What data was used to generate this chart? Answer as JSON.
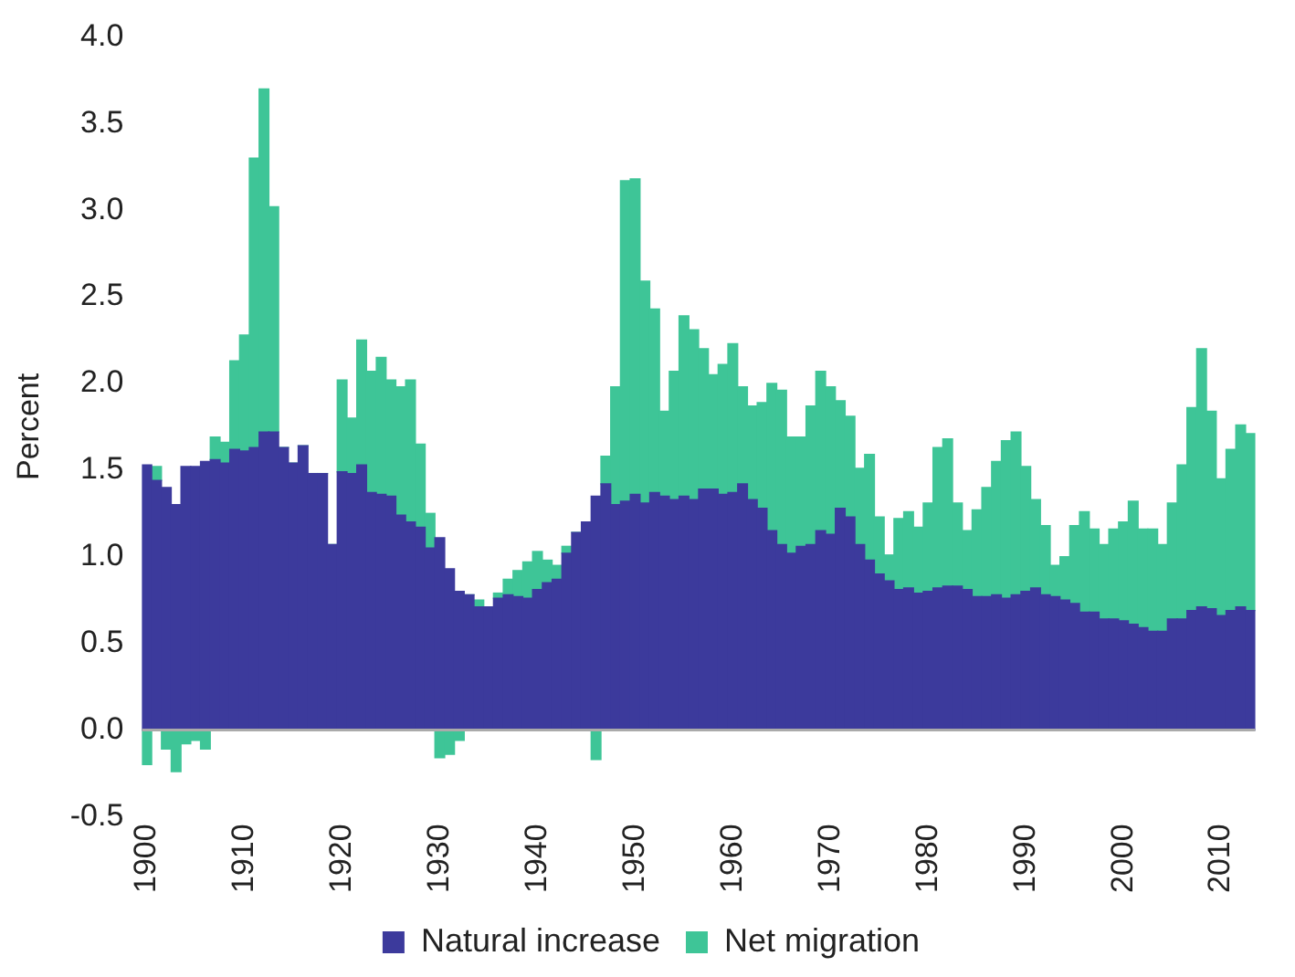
{
  "chart_data": {
    "type": "bar",
    "stacked": true,
    "ylabel": "Percent",
    "legend": "bottom",
    "categories": [
      "1900",
      null,
      null,
      null,
      null,
      null,
      null,
      null,
      null,
      null,
      "1910",
      null,
      null,
      null,
      null,
      null,
      null,
      null,
      null,
      null,
      "1920",
      null,
      null,
      null,
      null,
      null,
      null,
      null,
      null,
      null,
      "1930",
      null,
      null,
      null,
      null,
      null,
      null,
      null,
      null,
      null,
      "1940",
      null,
      null,
      null,
      null,
      null,
      null,
      null,
      null,
      null,
      "1950",
      null,
      null,
      null,
      null,
      null,
      null,
      null,
      null,
      null,
      "1960",
      null,
      null,
      null,
      null,
      null,
      null,
      null,
      null,
      null,
      "1970",
      null,
      null,
      null,
      null,
      null,
      null,
      null,
      null,
      null,
      "1980",
      null,
      null,
      null,
      null,
      null,
      null,
      null,
      null,
      null,
      "1990",
      null,
      null,
      null,
      null,
      null,
      null,
      null,
      null,
      null,
      "2000",
      null,
      null,
      null,
      null,
      null,
      null,
      null,
      null,
      null,
      "2010",
      null,
      null,
      null
    ],
    "ylim": [
      -0.5,
      4.0
    ],
    "yticks": [
      -0.5,
      {
        "value": 0,
        "label": "0.0"
      },
      0.5,
      {
        "value": 1,
        "label": "1.0"
      },
      1.5,
      {
        "value": 2,
        "label": "2.0"
      },
      2.5,
      {
        "value": 3,
        "label": "3.0"
      },
      3.5,
      {
        "value": 4,
        "label": "4.0"
      }
    ],
    "series": [
      {
        "name": "Natural increase",
        "color": "#3c3a9c",
        "values": [
          1.53,
          1.44,
          1.4,
          1.3,
          1.52,
          1.52,
          1.55,
          1.56,
          1.54,
          1.62,
          1.61,
          1.63,
          1.72,
          1.72,
          1.63,
          1.54,
          1.64,
          1.48,
          1.48,
          1.07,
          1.49,
          1.48,
          1.53,
          1.37,
          1.36,
          1.35,
          1.24,
          1.2,
          1.17,
          1.05,
          1.11,
          0.93,
          0.8,
          0.78,
          0.71,
          0.71,
          0.76,
          0.78,
          0.77,
          0.76,
          0.81,
          0.85,
          0.87,
          1.02,
          1.14,
          1.2,
          1.35,
          1.42,
          1.3,
          1.32,
          1.36,
          1.31,
          1.37,
          1.35,
          1.33,
          1.35,
          1.33,
          1.39,
          1.39,
          1.36,
          1.37,
          1.42,
          1.33,
          1.28,
          1.15,
          1.07,
          1.02,
          1.06,
          1.07,
          1.15,
          1.13,
          1.28,
          1.23,
          1.07,
          0.98,
          0.9,
          0.86,
          0.81,
          0.82,
          0.79,
          0.8,
          0.82,
          0.83,
          0.83,
          0.81,
          0.77,
          0.77,
          0.78,
          0.76,
          0.78,
          0.8,
          0.82,
          0.78,
          0.77,
          0.75,
          0.73,
          0.68,
          0.68,
          0.64,
          0.64,
          0.63,
          0.61,
          0.59,
          0.57,
          0.57,
          0.64,
          0.64,
          0.69,
          0.71,
          0.7,
          0.66,
          0.69,
          0.71,
          0.69
        ]
      },
      {
        "name": "Net migration",
        "color": "#3ec597",
        "values": [
          -0.2,
          0.08,
          -0.11,
          -0.24,
          -0.08,
          -0.06,
          -0.11,
          0.13,
          0.12,
          0.51,
          0.67,
          1.67,
          1.98,
          1.3,
          0,
          0,
          0,
          0,
          0,
          0,
          0.53,
          0.32,
          0.72,
          0.7,
          0.79,
          0.67,
          0.74,
          0.82,
          0.48,
          0.2,
          -0.16,
          -0.14,
          -0.06,
          0,
          0.04,
          0,
          0.03,
          0.09,
          0.15,
          0.21,
          0.22,
          0.13,
          0.08,
          0.04,
          0,
          0,
          -0.17,
          0.16,
          0.68,
          1.85,
          1.82,
          1.28,
          1.06,
          0.49,
          0.74,
          1.04,
          0.98,
          0.81,
          0.66,
          0.75,
          0.86,
          0.56,
          0.54,
          0.61,
          0.85,
          0.89,
          0.67,
          0.63,
          0.8,
          0.92,
          0.85,
          0.62,
          0.58,
          0.44,
          0.61,
          0.33,
          0.15,
          0.41,
          0.44,
          0.38,
          0.51,
          0.81,
          0.85,
          0.48,
          0.34,
          0.5,
          0.63,
          0.77,
          0.91,
          0.94,
          0.72,
          0.51,
          0.4,
          0.18,
          0.25,
          0.45,
          0.58,
          0.48,
          0.43,
          0.52,
          0.57,
          0.71,
          0.57,
          0.59,
          0.5,
          0.67,
          0.89,
          1.17,
          1.49,
          1.14,
          0.79,
          0.93,
          1.05,
          1.02
        ]
      }
    ]
  }
}
